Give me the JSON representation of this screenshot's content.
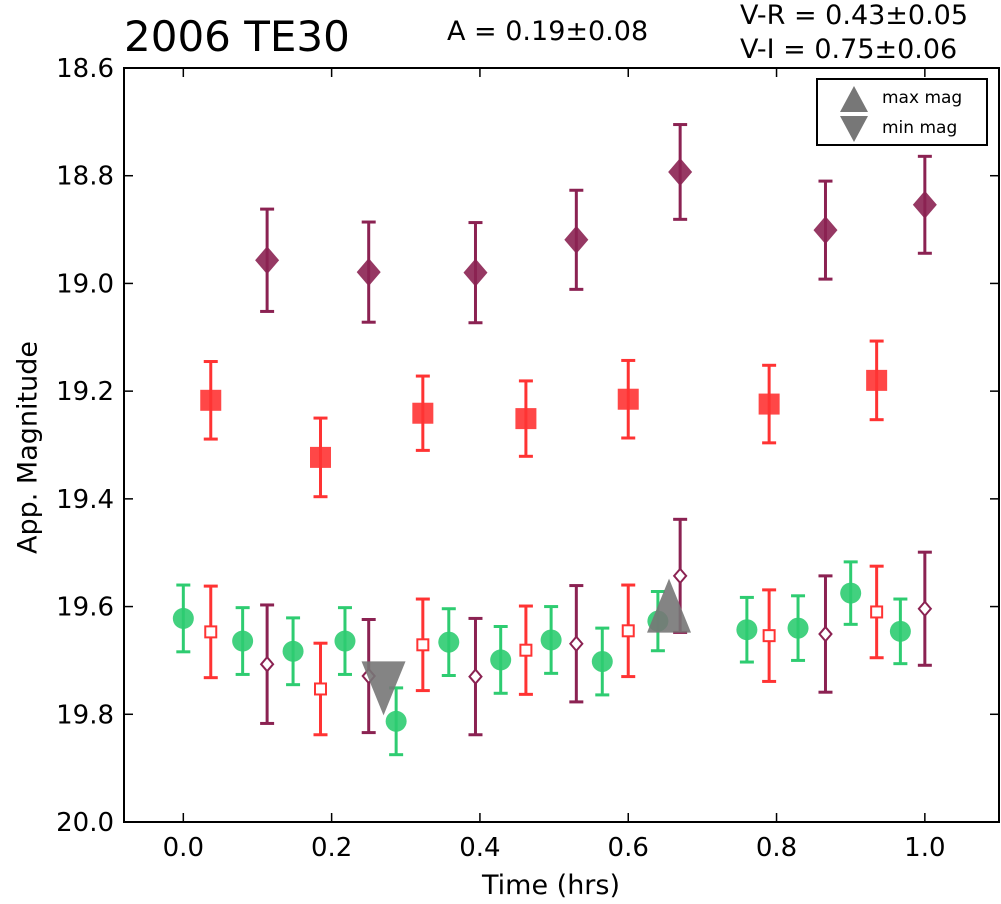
{
  "header": {
    "title": "2006 TE30",
    "amplitude": "A  = 0.19±0.08",
    "vr": "V-R = 0.43±0.05",
    "vi": "V-I  = 0.75±0.06"
  },
  "chart_data": {
    "type": "scatter",
    "title": "2006 TE30",
    "xlabel": "Time (hrs)",
    "ylabel": "App. Magnitude",
    "xlim": [
      -0.08,
      1.1
    ],
    "ylim": [
      20.0,
      18.6
    ],
    "y_inverted": true,
    "xticks": [
      0.0,
      0.2,
      0.4,
      0.6,
      0.8,
      1.0
    ],
    "xtick_labels": [
      "0.0",
      "0.2",
      "0.4",
      "0.6",
      "0.8",
      "1.0"
    ],
    "yticks": [
      18.6,
      18.8,
      19.0,
      19.2,
      19.4,
      19.6,
      19.8,
      20.0
    ],
    "ytick_labels": [
      "18.6",
      "18.8",
      "19.0",
      "19.2",
      "19.4",
      "19.6",
      "19.8",
      "20.0"
    ],
    "grid": false,
    "legend_position": "top-right",
    "series": [
      {
        "marker": "diamond",
        "filled": true,
        "color": "#8b2252",
        "points": [
          {
            "x": 0.113,
            "y": 18.957,
            "err": 0.095
          },
          {
            "x": 0.25,
            "y": 18.979,
            "err": 0.093
          },
          {
            "x": 0.394,
            "y": 18.98,
            "err": 0.093
          },
          {
            "x": 0.53,
            "y": 18.919,
            "err": 0.092
          },
          {
            "x": 0.67,
            "y": 18.793,
            "err": 0.088
          },
          {
            "x": 0.866,
            "y": 18.901,
            "err": 0.091
          },
          {
            "x": 1.0,
            "y": 18.854,
            "err": 0.09
          }
        ]
      },
      {
        "marker": "square",
        "filled": true,
        "color": "#ff3333",
        "points": [
          {
            "x": 0.037,
            "y": 19.217,
            "err": 0.072
          },
          {
            "x": 0.185,
            "y": 19.323,
            "err": 0.073
          },
          {
            "x": 0.323,
            "y": 19.241,
            "err": 0.069
          },
          {
            "x": 0.462,
            "y": 19.251,
            "err": 0.07
          },
          {
            "x": 0.6,
            "y": 19.215,
            "err": 0.072
          },
          {
            "x": 0.79,
            "y": 19.224,
            "err": 0.072
          },
          {
            "x": 0.935,
            "y": 19.18,
            "err": 0.073
          }
        ]
      },
      {
        "marker": "circle",
        "filled": true,
        "color": "#2ecc71",
        "points": [
          {
            "x": 0.0,
            "y": 19.622,
            "err": 0.062
          },
          {
            "x": 0.08,
            "y": 19.664,
            "err": 0.062
          },
          {
            "x": 0.148,
            "y": 19.683,
            "err": 0.062
          },
          {
            "x": 0.218,
            "y": 19.664,
            "err": 0.062
          },
          {
            "x": 0.287,
            "y": 19.813,
            "err": 0.062
          },
          {
            "x": 0.358,
            "y": 19.666,
            "err": 0.062
          },
          {
            "x": 0.428,
            "y": 19.699,
            "err": 0.062
          },
          {
            "x": 0.496,
            "y": 19.662,
            "err": 0.062
          },
          {
            "x": 0.565,
            "y": 19.702,
            "err": 0.062
          },
          {
            "x": 0.64,
            "y": 19.627,
            "err": 0.055
          },
          {
            "x": 0.76,
            "y": 19.643,
            "err": 0.06
          },
          {
            "x": 0.829,
            "y": 19.64,
            "err": 0.06
          },
          {
            "x": 0.9,
            "y": 19.575,
            "err": 0.058
          },
          {
            "x": 0.967,
            "y": 19.646,
            "err": 0.06
          }
        ]
      },
      {
        "marker": "square",
        "filled": false,
        "color": "#ff3333",
        "points": [
          {
            "x": 0.037,
            "y": 19.647,
            "err": 0.085
          },
          {
            "x": 0.185,
            "y": 19.753,
            "err": 0.085
          },
          {
            "x": 0.323,
            "y": 19.671,
            "err": 0.085
          },
          {
            "x": 0.462,
            "y": 19.681,
            "err": 0.082
          },
          {
            "x": 0.6,
            "y": 19.645,
            "err": 0.085
          },
          {
            "x": 0.79,
            "y": 19.654,
            "err": 0.085
          },
          {
            "x": 0.935,
            "y": 19.61,
            "err": 0.085
          }
        ]
      },
      {
        "marker": "diamond",
        "filled": false,
        "color": "#8b2252",
        "points": [
          {
            "x": 0.113,
            "y": 19.707,
            "err": 0.11
          },
          {
            "x": 0.25,
            "y": 19.729,
            "err": 0.105
          },
          {
            "x": 0.394,
            "y": 19.73,
            "err": 0.108
          },
          {
            "x": 0.53,
            "y": 19.669,
            "err": 0.108
          },
          {
            "x": 0.67,
            "y": 19.543,
            "err": 0.105
          },
          {
            "x": 0.866,
            "y": 19.651,
            "err": 0.108
          },
          {
            "x": 1.0,
            "y": 19.604,
            "err": 0.105
          }
        ]
      }
    ],
    "extrema": [
      {
        "label": "max mag",
        "marker": "triangle-up",
        "x": 0.655,
        "y": 19.6,
        "color": "#777777"
      },
      {
        "label": "min mag",
        "marker": "triangle-down",
        "x": 0.27,
        "y": 19.75,
        "color": "#777777"
      }
    ]
  }
}
